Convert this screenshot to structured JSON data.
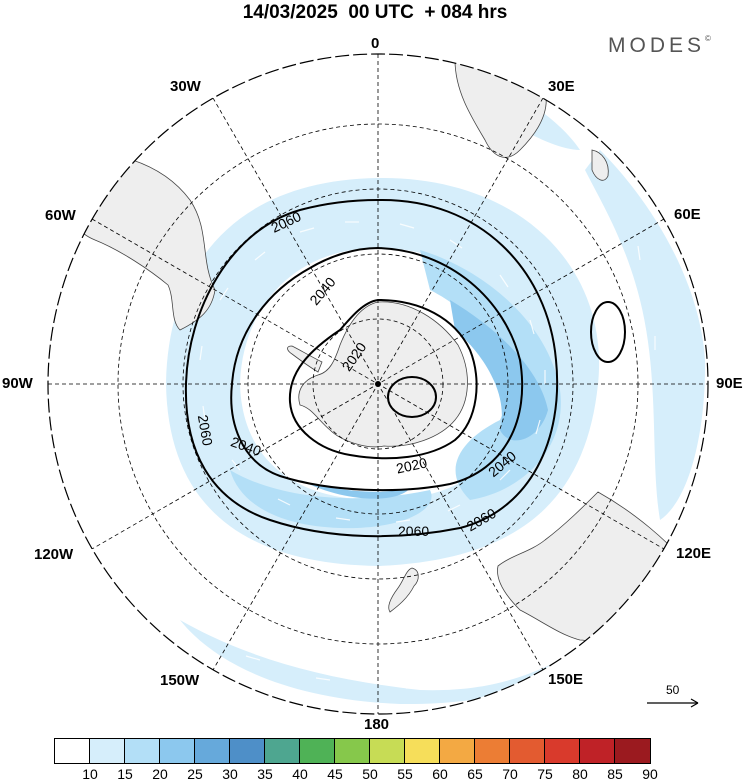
{
  "title": "14/03/2025  00 UTC  + 084 hrs",
  "brand": "MODES",
  "brand_mark": "©",
  "longitude_labels": [
    "0",
    "30E",
    "60E",
    "90E",
    "120E",
    "150E",
    "180",
    "150W",
    "120W",
    "90W",
    "60W",
    "30W"
  ],
  "contour_labels": [
    "2060",
    "2040",
    "2020",
    "2020",
    "2040",
    "2060",
    "2060",
    "2040",
    "2060"
  ],
  "reference_vector_value": "50",
  "colorbar": {
    "ticks": [
      "10",
      "15",
      "20",
      "25",
      "30",
      "35",
      "40",
      "45",
      "50",
      "55",
      "60",
      "65",
      "70",
      "75",
      "80",
      "85",
      "90"
    ],
    "colors": [
      "#ffffff",
      "#d6eefb",
      "#b3dff7",
      "#8cc8ee",
      "#66a9db",
      "#4e8fc8",
      "#4ea690",
      "#4fb256",
      "#86c84b",
      "#c7dc55",
      "#f6de5a",
      "#f3a943",
      "#ec7d34",
      "#e35b30",
      "#d93a2c",
      "#bf2227",
      "#9b1a1f"
    ]
  },
  "colors": {
    "land": "#eeeeee",
    "coast": "#444444",
    "contour": "#000000",
    "grid": "#000000"
  }
}
